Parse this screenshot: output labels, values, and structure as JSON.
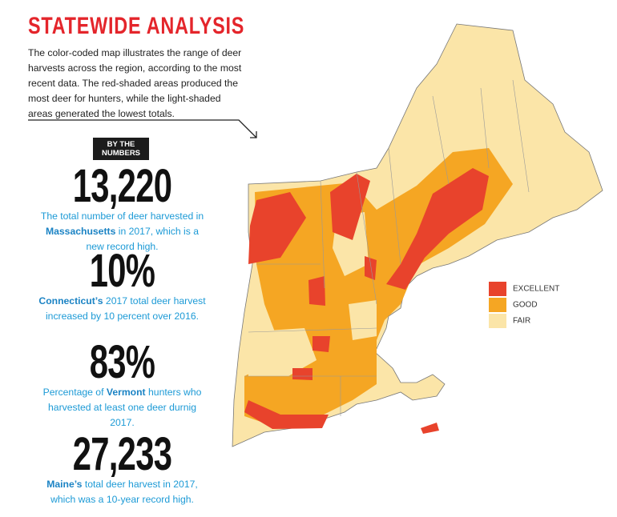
{
  "header": {
    "title": "STATEWIDE ANALYSIS",
    "intro": "The color-coded map illustrates the range of deer harvests across the region, according to the most recent data. The red-shaded areas produced the most deer for hunters, while the light-shaded areas generated the lowest totals."
  },
  "badge": [
    "BY THE",
    "NUMBERS"
  ],
  "stats": [
    {
      "figure": "13,220",
      "text": [
        {
          "text": "The total number of deer harvested in "
        },
        {
          "text": "Massachusetts",
          "bold": true
        },
        {
          "text": " in 2017, which is a new record high."
        }
      ]
    },
    {
      "figure": "10%",
      "text": [
        {
          "text": "Connecticut’s",
          "bold": true
        },
        {
          "text": " 2017 total deer harvest increased by 10 percent over 2016."
        }
      ]
    },
    {
      "figure": "83%",
      "text": [
        {
          "text": "Percentage of "
        },
        {
          "text": "Vermont",
          "bold": true
        },
        {
          "text": " hunters who harvested at least one deer durnig 2017."
        }
      ]
    },
    {
      "figure": "27,233",
      "text": [
        {
          "text": "Maine’s",
          "bold": true
        },
        {
          "text": " total deer harvest in 2017, which was a 10-year record high."
        }
      ]
    }
  ],
  "legend": [
    {
      "label": "EXCELLENT",
      "color": "#e8432c"
    },
    {
      "label": "GOOD",
      "color": "#f5a623"
    },
    {
      "label": "FAIR",
      "color": "#fbe5a8"
    }
  ]
}
